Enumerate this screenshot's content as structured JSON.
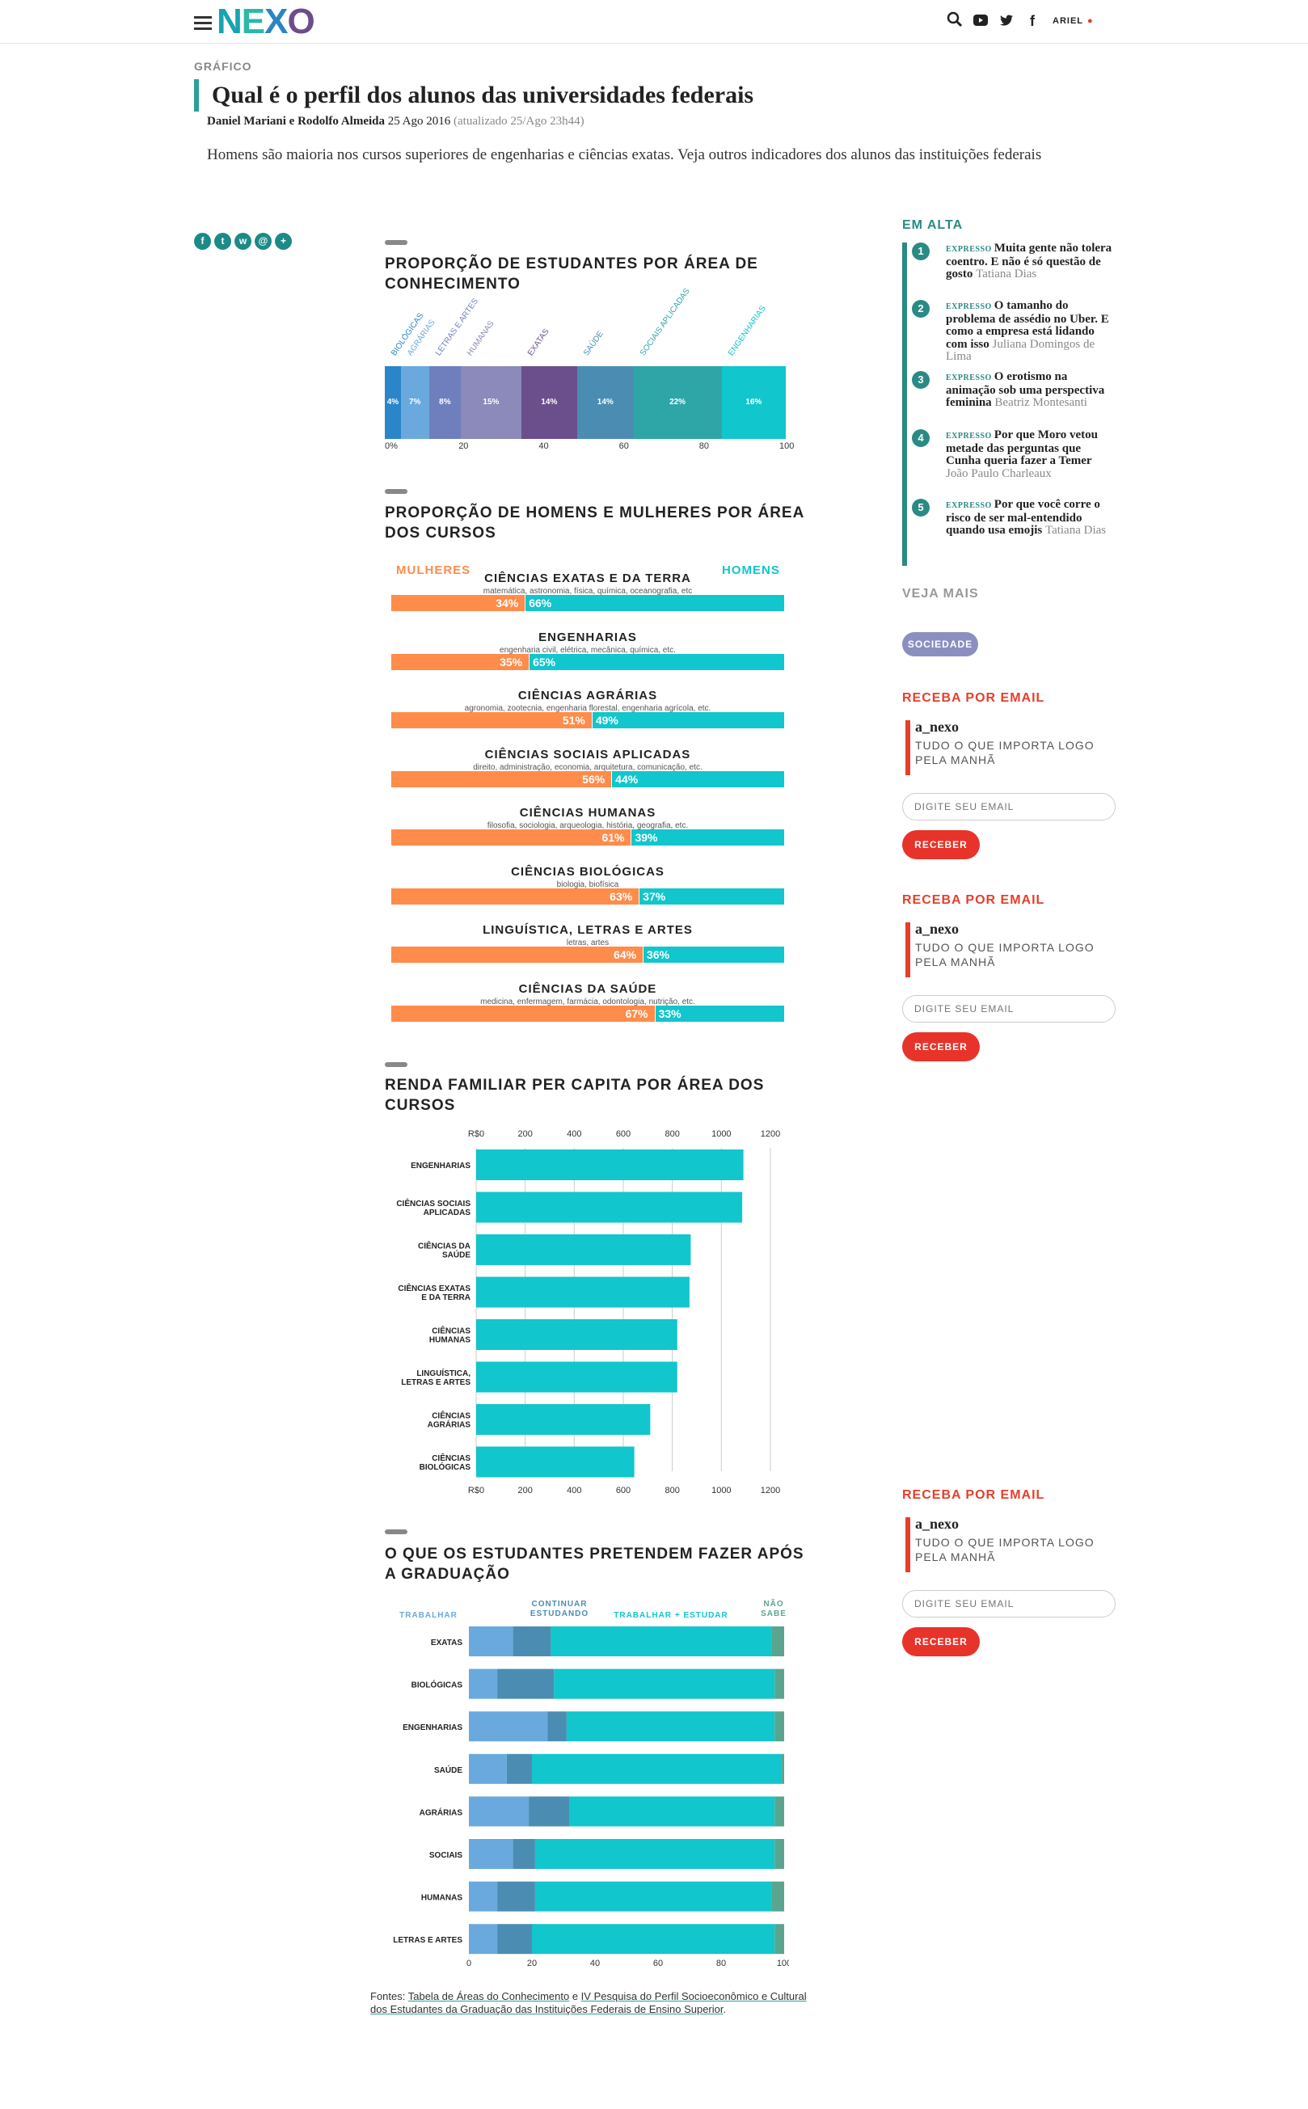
{
  "header": {
    "logo": [
      "N",
      "E",
      "X",
      "O"
    ],
    "user": "ARIEL"
  },
  "article": {
    "kicker": "GRÁFICO",
    "title": "Qual é o perfil dos alunos das universidades federais",
    "authors": "Daniel Mariani e Rodolfo Almeida",
    "date": "25 Ago 2016",
    "updated": "(atualizado 25/Ago 23h44)",
    "lede": "Homens são maioria nos cursos superiores de engenharias e ciências exatas. Veja outros indicadores dos alunos das instituições federais",
    "sources_prefix": "Fontes: ",
    "source_1": "Tabela de Áreas do Conhecimento",
    "sources_mid": " e ",
    "source_2": "IV Pesquisa do Perfil Socioeconômico e Cultural dos Estudantes da Graduação das Instituições Federais de Ensino Superior",
    "sources_end": "."
  },
  "share": [
    "f",
    "t",
    "w",
    "@",
    "+"
  ],
  "chart_data": [
    {
      "type": "bar",
      "stacked": true,
      "title": "PROPORÇÃO DE ESTUDANTES POR ÁREA DE CONHECIMENTO",
      "categories": [
        "BIOLÓGICAS",
        "AGRÁRIAS",
        "LETRAS E ARTES",
        "HUMANAS",
        "EXATAS",
        "SAÚDE",
        "SOCIAIS APLICADAS",
        "ENGENHARIAS"
      ],
      "values": [
        4,
        7,
        8,
        15,
        14,
        14,
        22,
        16
      ],
      "value_labels": [
        "4%",
        "7%",
        "8%",
        "15%",
        "14%",
        "14%",
        "22%",
        "16%"
      ],
      "colors": [
        "#2a86c9",
        "#6aa9dd",
        "#6f7fbe",
        "#8b8aba",
        "#6b4f8c",
        "#4b8db2",
        "#2ea6a8",
        "#11c6cc"
      ],
      "xticks": [
        "0%",
        "20",
        "40",
        "60",
        "80",
        "100"
      ],
      "xlim": [
        0,
        100
      ]
    },
    {
      "type": "bar",
      "stacked": true,
      "title": "PROPORÇÃO DE HOMENS E MULHERES POR ÁREA DOS CURSOS",
      "legend": [
        "MULHERES",
        "HOMENS"
      ],
      "colors": [
        "#ff8c4a",
        "#11c6cc"
      ],
      "categories": [
        "CIÊNCIAS EXATAS E DA TERRA",
        "ENGENHARIAS",
        "CIÊNCIAS AGRÁRIAS",
        "CIÊNCIAS SOCIAIS APLICADAS",
        "CIÊNCIAS HUMANAS",
        "CIÊNCIAS BIOLÓGICAS",
        "LINGUÍSTICA, LETRAS E ARTES",
        "CIÊNCIAS DA SAÚDE"
      ],
      "examples": [
        "matemática, astronomia, física, química, oceanografia, etc",
        "engenharia civil, elétrica, mecânica, química, etc.",
        "agronomia, zootecnia, engenharia florestal, engenharia agrícola, etc.",
        "direito, administração, economia, arquitetura, comunicação, etc.",
        "filosofia, sociologia, arqueologia, história, geografia, etc.",
        "biologia, biofísica",
        "letras, artes",
        "medicina, enfermagem, farmácia, odontologia, nutrição, etc."
      ],
      "series": [
        {
          "name": "MULHERES",
          "values": [
            34,
            35,
            51,
            56,
            61,
            63,
            64,
            67
          ],
          "labels": [
            "34%",
            "35%",
            "51%",
            "56%",
            "61%",
            "63%",
            "64%",
            "67%"
          ]
        },
        {
          "name": "HOMENS",
          "values": [
            66,
            65,
            49,
            44,
            39,
            37,
            36,
            33
          ],
          "labels": [
            "66%",
            "65%",
            "49%",
            "44%",
            "39%",
            "37%",
            "36%",
            "33%"
          ]
        }
      ]
    },
    {
      "type": "bar",
      "orientation": "horizontal",
      "title": "RENDA FAMILIAR PER CAPITA POR ÁREA DOS CURSOS",
      "categories": [
        [
          "ENGENHARIAS"
        ],
        [
          "CIÊNCIAS SOCIAIS",
          "APLICADAS"
        ],
        [
          "CIÊNCIAS DA",
          "SAÚDE"
        ],
        [
          "CIÊNCIAS EXATAS",
          "E DA TERRA"
        ],
        [
          "CIÊNCIAS",
          "HUMANAS"
        ],
        [
          "LINGUÍSTICA,",
          "LETRAS E ARTES"
        ],
        [
          "CIÊNCIAS",
          "AGRÁRIAS"
        ],
        [
          "CIÊNCIAS",
          "BIOLÓGICAS"
        ]
      ],
      "values": [
        1090,
        1085,
        875,
        870,
        820,
        820,
        710,
        645
      ],
      "xticks": [
        "R$0",
        "200",
        "400",
        "600",
        "800",
        "1000",
        "1200"
      ],
      "xlim": [
        0,
        1200
      ],
      "color": "#11c6cc",
      "grid": true
    },
    {
      "type": "bar",
      "stacked": true,
      "title": "O QUE OS ESTUDANTES PRETENDEM FAZER APÓS A GRADUAÇÃO",
      "legend": [
        [
          "TRABALHAR"
        ],
        [
          "CONTINUAR",
          "ESTUDANDO"
        ],
        [
          "TRABALHAR + ESTUDAR"
        ],
        [
          "NÃO",
          "SABE"
        ]
      ],
      "colors": [
        "#6aa9dd",
        "#4b8db2",
        "#11c6cc",
        "#5aa58f"
      ],
      "categories": [
        "EXATAS",
        "BIOLÓGICAS",
        "ENGENHARIAS",
        "SAÚDE",
        "AGRÁRIAS",
        "SOCIAIS",
        "HUMANAS",
        "LETRAS E ARTES"
      ],
      "series": [
        {
          "name": "TRABALHAR",
          "values": [
            14,
            9,
            25,
            12,
            19,
            14,
            9,
            9
          ]
        },
        {
          "name": "CONTINUAR ESTUDANDO",
          "values": [
            12,
            18,
            6,
            8,
            13,
            7,
            12,
            11
          ]
        },
        {
          "name": "TRABALHAR + ESTUDAR",
          "values": [
            70,
            70,
            66,
            79,
            65,
            76,
            75,
            77
          ]
        },
        {
          "name": "NÃO SABE",
          "values": [
            4,
            3,
            3,
            1,
            3,
            3,
            4,
            3
          ]
        }
      ],
      "xticks": [
        "0",
        "20",
        "40",
        "60",
        "80",
        "100"
      ],
      "xlim": [
        0,
        100
      ]
    }
  ],
  "aside": {
    "emalta": "EM ALTA",
    "trending": [
      {
        "n": "1",
        "kicker": "EXPRESSO",
        "title": "Muita gente não tolera coentro. E não é só questão de gosto",
        "author": "Tatiana Dias"
      },
      {
        "n": "2",
        "kicker": "EXPRESSO",
        "title": "O tamanho do problema de assédio no Uber. E como a empresa está lidando com isso",
        "author": "Juliana Domingos de Lima"
      },
      {
        "n": "3",
        "kicker": "EXPRESSO",
        "title": "O erotismo na animação sob uma perspectiva feminina",
        "author": "Beatriz Montesanti"
      },
      {
        "n": "4",
        "kicker": "EXPRESSO",
        "title": "Por que Moro vetou metade das perguntas que Cunha queria fazer a Temer",
        "author": "João Paulo Charleaux"
      },
      {
        "n": "5",
        "kicker": "EXPRESSO",
        "title": "Por que você corre o risco de ser mal-entendido quando usa emojis",
        "author": "Tatiana Dias"
      }
    ],
    "veja_mais": "VEJA MAIS",
    "tag": "SOCIEDADE"
  },
  "newsletter": {
    "heading": "RECEBA POR EMAIL",
    "name": "a_nexo",
    "tagline": "TUDO O QUE IMPORTA LOGO PELA MANHÃ",
    "placeholder": "DIGITE SEU EMAIL",
    "button": "RECEBER"
  }
}
